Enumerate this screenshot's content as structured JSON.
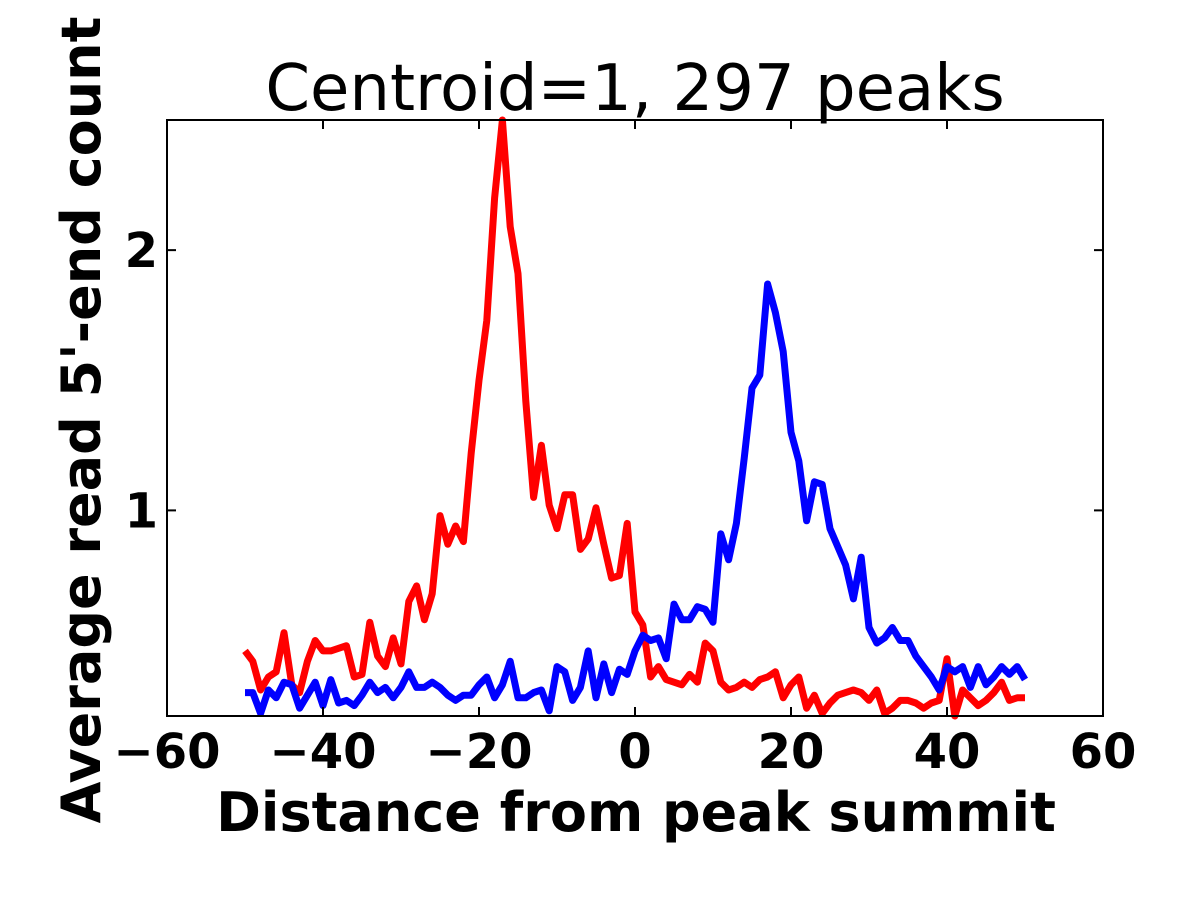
{
  "chart_data": {
    "type": "line",
    "title": "Centroid=1, 297 peaks",
    "xlabel": "Distance from peak summit",
    "ylabel": "Average read 5'-end count",
    "xlim": [
      -60,
      60
    ],
    "ylim": [
      0.21,
      2.5
    ],
    "xticks": [
      -60,
      -40,
      -20,
      0,
      20,
      40,
      60
    ],
    "xtick_labels": [
      "−60",
      "−40",
      "−20",
      "0",
      "20",
      "40",
      "60"
    ],
    "yticks": [
      1,
      2
    ],
    "ytick_labels": [
      "1",
      "2"
    ],
    "grid": false,
    "x": [
      -50,
      -49,
      -48,
      -47,
      -46,
      -45,
      -44,
      -43,
      -42,
      -41,
      -40,
      -39,
      -38,
      -37,
      -36,
      -35,
      -34,
      -33,
      -32,
      -31,
      -30,
      -29,
      -28,
      -27,
      -26,
      -25,
      -24,
      -23,
      -22,
      -21,
      -20,
      -19,
      -18,
      -17,
      -16,
      -15,
      -14,
      -13,
      -12,
      -11,
      -10,
      -9,
      -8,
      -7,
      -6,
      -5,
      -4,
      -3,
      -2,
      -1,
      0,
      1,
      2,
      3,
      4,
      5,
      6,
      7,
      8,
      9,
      10,
      11,
      12,
      13,
      14,
      15,
      16,
      17,
      18,
      19,
      20,
      21,
      22,
      23,
      24,
      25,
      26,
      27,
      28,
      29,
      30,
      31,
      32,
      33,
      34,
      35,
      36,
      37,
      38,
      39,
      40,
      41,
      42,
      43,
      44,
      45,
      46,
      47,
      48,
      49,
      50
    ],
    "series": [
      {
        "color": "#ff0000",
        "values": [
          0.46,
          0.42,
          0.31,
          0.36,
          0.38,
          0.53,
          0.33,
          0.3,
          0.42,
          0.5,
          0.46,
          0.46,
          0.47,
          0.48,
          0.36,
          0.37,
          0.57,
          0.44,
          0.4,
          0.51,
          0.41,
          0.65,
          0.71,
          0.58,
          0.68,
          0.98,
          0.87,
          0.94,
          0.88,
          1.22,
          1.5,
          1.73,
          2.2,
          2.5,
          2.09,
          1.91,
          1.42,
          1.05,
          1.25,
          1.02,
          0.93,
          1.06,
          1.06,
          0.85,
          0.89,
          1.01,
          0.87,
          0.74,
          0.75,
          0.95,
          0.61,
          0.56,
          0.36,
          0.4,
          0.35,
          0.34,
          0.33,
          0.37,
          0.34,
          0.49,
          0.46,
          0.34,
          0.31,
          0.32,
          0.34,
          0.32,
          0.35,
          0.36,
          0.38,
          0.28,
          0.33,
          0.36,
          0.24,
          0.29,
          0.22,
          0.26,
          0.29,
          0.3,
          0.31,
          0.3,
          0.27,
          0.31,
          0.22,
          0.24,
          0.27,
          0.27,
          0.26,
          0.24,
          0.26,
          0.27,
          0.43,
          0.21,
          0.31,
          0.28,
          0.25,
          0.27,
          0.3,
          0.34,
          0.27,
          0.28,
          0.28
        ]
      },
      {
        "color": "#0000ff",
        "values": [
          0.3,
          0.3,
          0.22,
          0.31,
          0.28,
          0.34,
          0.33,
          0.24,
          0.29,
          0.34,
          0.25,
          0.35,
          0.26,
          0.27,
          0.25,
          0.29,
          0.34,
          0.3,
          0.32,
          0.28,
          0.32,
          0.38,
          0.32,
          0.32,
          0.34,
          0.32,
          0.29,
          0.27,
          0.29,
          0.29,
          0.33,
          0.36,
          0.28,
          0.33,
          0.42,
          0.28,
          0.28,
          0.3,
          0.31,
          0.23,
          0.4,
          0.38,
          0.27,
          0.32,
          0.46,
          0.28,
          0.41,
          0.3,
          0.39,
          0.37,
          0.46,
          0.52,
          0.5,
          0.51,
          0.43,
          0.64,
          0.58,
          0.58,
          0.63,
          0.62,
          0.57,
          0.91,
          0.81,
          0.95,
          1.2,
          1.47,
          1.52,
          1.87,
          1.76,
          1.61,
          1.3,
          1.19,
          0.96,
          1.11,
          1.1,
          0.93,
          0.86,
          0.79,
          0.66,
          0.82,
          0.55,
          0.49,
          0.51,
          0.55,
          0.5,
          0.5,
          0.44,
          0.4,
          0.36,
          0.31,
          0.4,
          0.38,
          0.4,
          0.32,
          0.4,
          0.33,
          0.36,
          0.4,
          0.37,
          0.4,
          0.35
        ]
      }
    ]
  }
}
